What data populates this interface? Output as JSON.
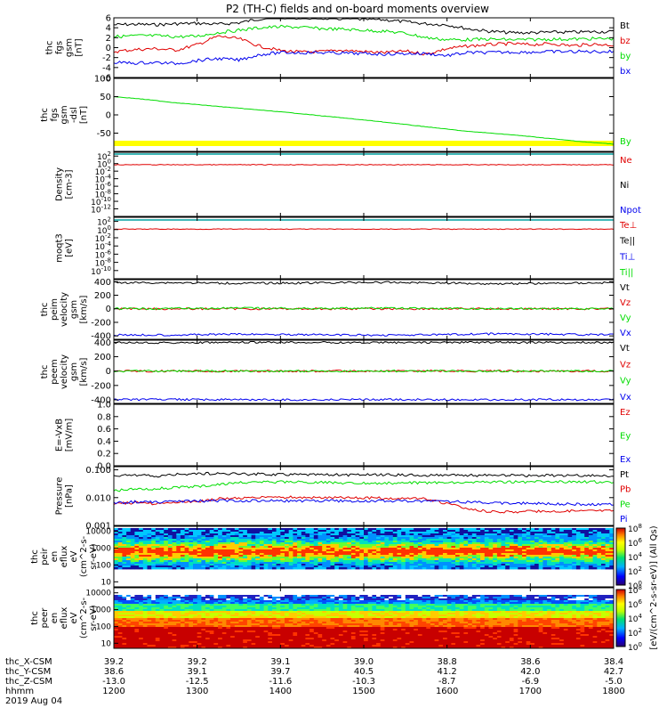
{
  "title": "P2 (TH-C) fields and on-board moments overview",
  "colors": {
    "black": "#000000",
    "red": "#e00000",
    "green": "#00dd00",
    "blue": "#0000ee",
    "yellow": "#ffff00",
    "teal": "#00a0a0"
  },
  "chart_data": [
    {
      "type": "line",
      "panel": "fgs_gsm",
      "ylabel": [
        "thc",
        "fgs",
        "gsm",
        "[nT]"
      ],
      "ylim": [
        -6,
        6
      ],
      "yticks": [
        6,
        4,
        2,
        0,
        -2,
        -4,
        -6
      ],
      "legend": [
        "Bt",
        "bz",
        "by",
        "bx"
      ],
      "series": [
        {
          "name": "Bt",
          "color": "black",
          "values": [
            4.6,
            4.7,
            4.6,
            4.8,
            4.9,
            4.7,
            5.0,
            5.8,
            6.1,
            6.0,
            5.9,
            5.8,
            5.7,
            5.6,
            5.2,
            4.8,
            4.6,
            3.8,
            3.3,
            3.0,
            3.0,
            3.1,
            3.1,
            3.2,
            3.2
          ]
        },
        {
          "name": "bz",
          "color": "red",
          "values": [
            -0.8,
            -0.4,
            -0.2,
            -0.5,
            0.6,
            2.3,
            1.8,
            0.3,
            -0.6,
            -0.9,
            -0.8,
            -0.5,
            -0.8,
            -1.0,
            -0.7,
            -1.3,
            -0.2,
            0.3,
            0.6,
            0.8,
            0.6,
            0.8,
            0.4,
            0.7,
            0.5
          ]
        },
        {
          "name": "by",
          "color": "green",
          "values": [
            2.2,
            2.4,
            2.4,
            2.2,
            2.3,
            3.0,
            3.5,
            4.0,
            4.2,
            4.1,
            3.8,
            3.7,
            3.5,
            3.3,
            2.9,
            2.0,
            1.6,
            1.6,
            1.7,
            1.6,
            1.6,
            1.7,
            1.7,
            1.8,
            1.8
          ]
        },
        {
          "name": "bx",
          "color": "blue",
          "values": [
            -3.0,
            -3.1,
            -3.0,
            -3.2,
            -2.6,
            -2.2,
            -2.5,
            -1.4,
            -1.0,
            -1.0,
            -1.0,
            -1.1,
            -1.2,
            -1.3,
            -1.2,
            -1.2,
            -1.6,
            -1.0,
            -1.0,
            -0.9,
            -0.9,
            -0.8,
            -0.8,
            -0.8,
            -0.8
          ]
        }
      ]
    },
    {
      "type": "line",
      "panel": "fgs_dsl",
      "ylabel": [
        "thc",
        "fgs",
        "gsm",
        "-dsl",
        "[nT]"
      ],
      "ylim": [
        -100,
        100
      ],
      "yticks": [
        100,
        50,
        0,
        -50
      ],
      "legend": [
        "By"
      ],
      "series": [
        {
          "name": "By",
          "color": "green",
          "values": [
            50,
            43,
            34,
            27,
            20,
            13,
            6,
            -2,
            -10,
            -18,
            -27,
            -36,
            -45,
            -51,
            -58,
            -66,
            -74,
            -80
          ]
        }
      ]
    },
    {
      "type": "line",
      "panel": "density",
      "log": true,
      "ylabel": [
        "Density",
        "[cm-3]"
      ],
      "ylim_exp": [
        -14,
        3
      ],
      "yticks": [
        {
          "v": "10",
          "e": "2"
        },
        {
          "v": "10",
          "e": "0"
        },
        {
          "v": "10",
          "e": "-2"
        },
        {
          "v": "10",
          "e": "-4"
        },
        {
          "v": "10",
          "e": "-6"
        },
        {
          "v": "10",
          "e": "-8"
        },
        {
          "v": "10",
          "e": "-10"
        },
        {
          "v": "10",
          "e": "-12"
        }
      ],
      "legend": [
        "Ne",
        "Ni",
        "Npot"
      ],
      "series": [
        {
          "name": "Ne",
          "color": "red",
          "values": [
            0.5,
            0.5,
            0.5
          ]
        }
      ]
    },
    {
      "type": "line",
      "panel": "moqt3",
      "log": true,
      "ylabel": [
        "moqt3",
        "[eV]"
      ],
      "ylim_exp": [
        -12,
        3
      ],
      "yticks": [
        {
          "v": "10",
          "e": "2"
        },
        {
          "v": "10",
          "e": "0"
        },
        {
          "v": "10",
          "e": "-2"
        },
        {
          "v": "10",
          "e": "-4"
        },
        {
          "v": "10",
          "e": "-6"
        },
        {
          "v": "10",
          "e": "-8"
        },
        {
          "v": "10",
          "e": "-10"
        }
      ],
      "legend": [
        "Te⊥",
        "Te||",
        "Ti⊥",
        "Ti||"
      ],
      "series": [
        {
          "name": "Te⊥",
          "color": "red",
          "values": [
            1.3,
            1.3,
            1.3
          ]
        }
      ]
    },
    {
      "type": "line",
      "panel": "peim_velocity",
      "ylabel": [
        "thc",
        "peim",
        "velocity",
        "gsm",
        "[km/s]"
      ],
      "ylim": [
        -450,
        430
      ],
      "yticks": [
        400,
        200,
        0,
        -200,
        -400
      ],
      "legend": [
        "Vt",
        "Vz",
        "Vy",
        "Vx"
      ],
      "series": [
        {
          "name": "Vt",
          "color": "black",
          "values": [
            385,
            385,
            375,
            380,
            390,
            385,
            370,
            375,
            385
          ]
        },
        {
          "name": "Vz",
          "color": "red",
          "values": [
            0,
            0,
            0,
            0,
            0,
            0,
            0,
            0,
            0
          ]
        },
        {
          "name": "Vy",
          "color": "green",
          "values": [
            0,
            5,
            10,
            5,
            10,
            5,
            0,
            5,
            0
          ]
        },
        {
          "name": "Vx",
          "color": "blue",
          "values": [
            -385,
            -385,
            -375,
            -380,
            -390,
            -385,
            -370,
            -375,
            -385
          ]
        }
      ]
    },
    {
      "type": "line",
      "panel": "peem_velocity",
      "ylabel": [
        "thc",
        "peem",
        "velocity",
        "gsm",
        "[km/s]"
      ],
      "ylim": [
        -450,
        430
      ],
      "yticks": [
        400,
        200,
        0,
        -200,
        -400
      ],
      "legend": [
        "Vt",
        "Vz",
        "Vy",
        "Vx"
      ],
      "series": [
        {
          "name": "Vt",
          "color": "black",
          "values": [
            400,
            395,
            398,
            400,
            396,
            398,
            400,
            397,
            399
          ]
        },
        {
          "name": "Vz",
          "color": "red",
          "values": [
            0,
            0,
            0,
            0,
            0,
            0,
            0,
            0,
            0
          ]
        },
        {
          "name": "Vy",
          "color": "green",
          "values": [
            0,
            0,
            0,
            0,
            0,
            0,
            0,
            0,
            0
          ]
        },
        {
          "name": "Vx",
          "color": "blue",
          "values": [
            -400,
            -395,
            -398,
            -400,
            -396,
            -398,
            -400,
            -397,
            -399
          ]
        }
      ]
    },
    {
      "type": "line",
      "panel": "e_field",
      "ylabel": [
        "E=-VxB",
        "[mV/m]"
      ],
      "ylim": [
        0,
        1
      ],
      "yticks": [
        "1.0",
        "0.8",
        "0.6",
        "0.4",
        "0.2",
        "0.0"
      ],
      "legend": [
        "Ez",
        "Ey",
        "Ex"
      ],
      "series": []
    },
    {
      "type": "line",
      "panel": "pressure",
      "log": true,
      "ylabel": [
        "Pressure",
        "[nPa]"
      ],
      "ylim": [
        0.001,
        0.13
      ],
      "yticks": [
        "0.100",
        "0.010",
        "0.001"
      ],
      "legend": [
        "Pt",
        "Pb",
        "Pe",
        "Pi"
      ],
      "series": [
        {
          "name": "Pt",
          "color": "black",
          "values": [
            0.06,
            0.065,
            0.058,
            0.068,
            0.074,
            0.073,
            0.071,
            0.07,
            0.069,
            0.068,
            0.067,
            0.066,
            0.066,
            0.065,
            0.065,
            0.064,
            0.064,
            0.063,
            0.063,
            0.063,
            0.062,
            0.062,
            0.062,
            0.062,
            0.061
          ]
        },
        {
          "name": "Pb",
          "color": "red",
          "values": [
            0.006,
            0.0065,
            0.006,
            0.0068,
            0.007,
            0.009,
            0.0095,
            0.01,
            0.0102,
            0.0103,
            0.0102,
            0.01,
            0.0098,
            0.0095,
            0.0093,
            0.009,
            0.006,
            0.0038,
            0.0032,
            0.003,
            0.0032,
            0.0033,
            0.0033,
            0.0034,
            0.0034
          ]
        },
        {
          "name": "Pe",
          "color": "green",
          "values": [
            0.018,
            0.02,
            0.021,
            0.023,
            0.025,
            0.03,
            0.034,
            0.036,
            0.037,
            0.036,
            0.035,
            0.034,
            0.034,
            0.033,
            0.034,
            0.034,
            0.035,
            0.035,
            0.036,
            0.036,
            0.037,
            0.037,
            0.037,
            0.037,
            0.037
          ]
        },
        {
          "name": "Pi",
          "color": "blue",
          "values": [
            0.0065,
            0.007,
            0.0068,
            0.0072,
            0.0075,
            0.0078,
            0.0078,
            0.0077,
            0.0076,
            0.0076,
            0.0077,
            0.0076,
            0.0076,
            0.0076,
            0.0076,
            0.0075,
            0.0073,
            0.0069,
            0.0066,
            0.0063,
            0.0062,
            0.006,
            0.0058,
            0.0057,
            0.0057
          ]
        }
      ]
    },
    {
      "type": "heatmap",
      "panel": "peir",
      "ylabel": [
        "thc",
        "peir",
        "en",
        "eflux",
        "eV",
        "(cm^2-s-",
        "sr-eV)"
      ],
      "ylim": [
        5,
        20000
      ],
      "yticks": [
        "10000",
        "1000",
        "100",
        "10"
      ]
    },
    {
      "type": "heatmap",
      "panel": "peer",
      "ylabel": [
        "thc",
        "peer",
        "en",
        "eflux",
        "eV",
        "(cm^2-s-",
        "sr-eV)"
      ],
      "ylim": [
        5,
        20000
      ],
      "yticks": [
        "10000",
        "1000",
        "100",
        "10"
      ]
    }
  ],
  "colorbar": {
    "label": "[eV/(cm^2-s-sr-eV)] (All Qs)",
    "ticks_upper": [
      {
        "v": "10",
        "e": "8"
      },
      {
        "v": "10",
        "e": "6"
      },
      {
        "v": "10",
        "e": "4"
      },
      {
        "v": "10",
        "e": "2"
      },
      {
        "v": "10",
        "e": "0"
      }
    ],
    "ticks_lower": [
      {
        "v": "10",
        "e": "8"
      },
      {
        "v": "10",
        "e": "6"
      },
      {
        "v": "10",
        "e": "4"
      },
      {
        "v": "10",
        "e": "2"
      },
      {
        "v": "10",
        "e": "0"
      }
    ]
  },
  "xaxis": {
    "rows": [
      {
        "label": "thc_X-CSM",
        "values": [
          "39.2",
          "39.2",
          "39.1",
          "39.0",
          "38.8",
          "38.6",
          "38.4"
        ]
      },
      {
        "label": "thc_Y-CSM",
        "values": [
          "38.6",
          "39.1",
          "39.7",
          "40.5",
          "41.2",
          "42.0",
          "42.7"
        ]
      },
      {
        "label": "thc_Z-CSM",
        "values": [
          "-13.0",
          "-12.5",
          "-11.6",
          "-10.3",
          "-8.7",
          "-6.9",
          "-5.0"
        ]
      },
      {
        "label": "hhmm",
        "values": [
          "1200",
          "1300",
          "1400",
          "1500",
          "1600",
          "1700",
          "1800"
        ]
      }
    ],
    "date": "2019 Aug 04"
  }
}
